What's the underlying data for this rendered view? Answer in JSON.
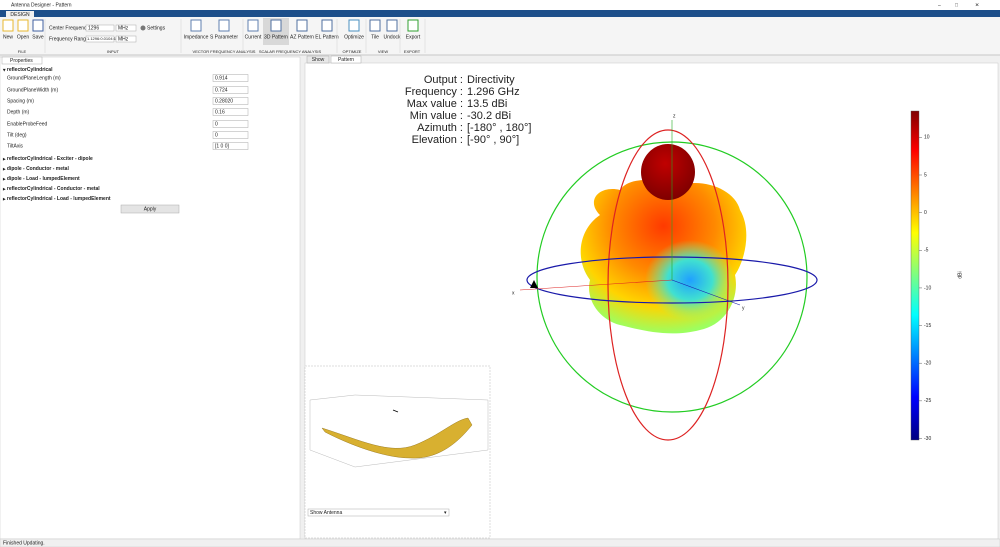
{
  "window": {
    "title": "Antenna Designer - Pattern"
  },
  "tabs": [
    "DESIGN"
  ],
  "toolstrip": {
    "buttons": [
      "New",
      "Open",
      "Save",
      "Impedance",
      "S Parameter",
      "Current",
      "3D Pattern",
      "AZ Pattern",
      "EL Pattern",
      "Optimize",
      "Tile",
      "Undock",
      "Export"
    ],
    "center_frequency_label": "Center Frequency",
    "center_frequency": "1296",
    "center_unit": "MHz",
    "settings": "Settings",
    "frequency_range_label": "Frequency Range",
    "frequency_range": "1.1296:0.0104:1.4",
    "range_unit": "MHz",
    "sections": [
      "FILE",
      "INPUT",
      "VECTOR FREQUENCY ANALYSIS",
      "SCALAR FREQUENCY ANALYSIS",
      "OPTIMIZE",
      "VIEW",
      "EXPORT"
    ]
  },
  "properties": {
    "tab": "Properties",
    "group": "reflectorCylindrical",
    "rows": [
      [
        "GroundPlaneLength (m)",
        "0.914"
      ],
      [
        "GroundPlaneWidth (m)",
        "0.724"
      ],
      [
        "Spacing (m)",
        "0.28020"
      ],
      [
        "Depth (m)",
        "0.16"
      ],
      [
        "EnableProbeFeed",
        "0"
      ],
      [
        "Tilt (deg)",
        "0"
      ],
      [
        "TiltAxis",
        "[1 0 0]"
      ]
    ],
    "sections": [
      "reflectorCylindrical - Exciter - dipole",
      "dipole - Conductor - metal",
      "dipole - Load - lumpedElement",
      "reflectorCylindrical - Conductor - metal",
      "reflectorCylindrical - Load - lumpedElement"
    ],
    "apply": "Apply"
  },
  "pattern": {
    "tabs": [
      "Show",
      "Pattern"
    ],
    "info": [
      [
        "Output :",
        "Directivity"
      ],
      [
        "Frequency :",
        "1.296 GHz"
      ],
      [
        "Max value :",
        "13.5 dBi"
      ],
      [
        "Min value :",
        "-30.2 dBi"
      ],
      [
        "Azimuth :",
        "[-180° , 180°]"
      ],
      [
        "Elevation :",
        "[-90° , 90°]"
      ]
    ],
    "axis_labels": [
      "z",
      "x",
      "y"
    ],
    "colorbar": {
      "label": "dBi",
      "lim": [
        -30.2,
        13.5
      ],
      "ticks": [
        10,
        5,
        0,
        -5,
        -10,
        -15,
        -20,
        -25,
        -30
      ]
    }
  },
  "preview": {
    "dropdown": "Show Antenna"
  },
  "status": "Finished Updating."
}
